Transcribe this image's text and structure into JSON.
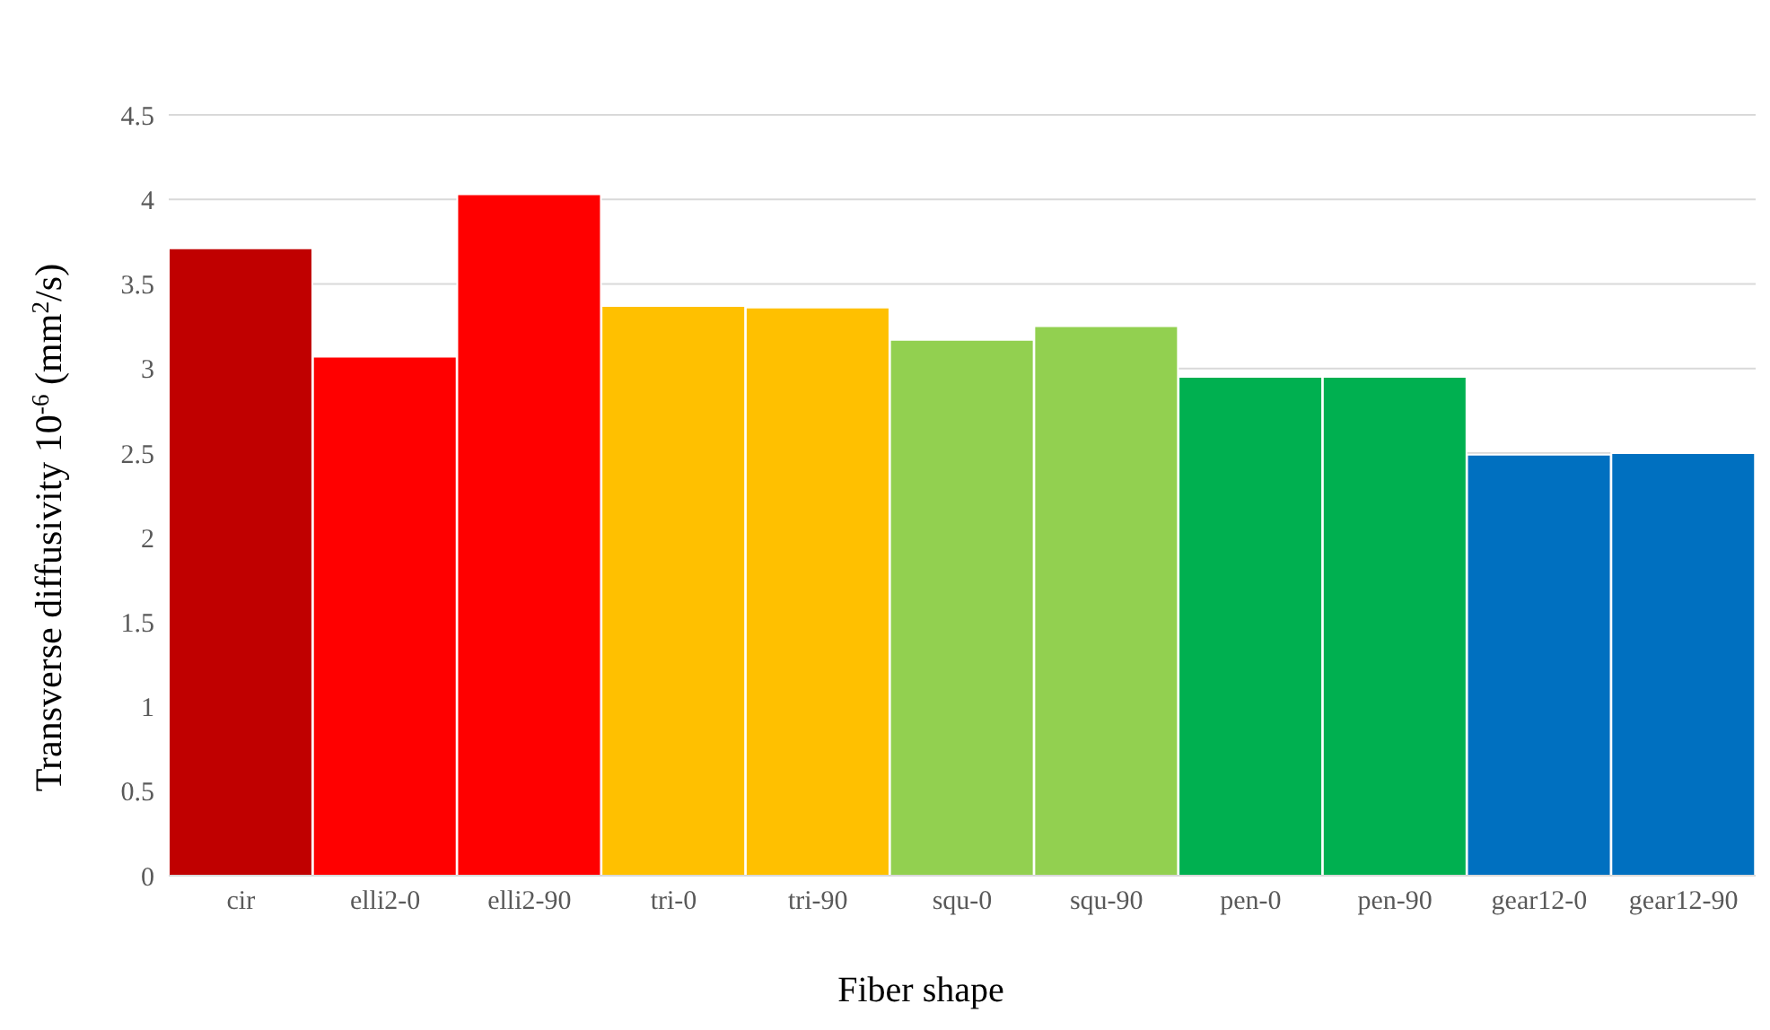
{
  "chart_data": {
    "type": "bar",
    "xlabel": "Fiber shape",
    "ylabel": "Transverse diffusivity 10$^{-6}$ (mm$^{2}$/s)",
    "categories": [
      "cir",
      "elli2-0",
      "elli2-90",
      "tri-0",
      "tri-90",
      "squ-0",
      "squ-90",
      "pen-0",
      "pen-90",
      "gear12-0",
      "gear12-90"
    ],
    "values": [
      3.71,
      3.07,
      4.03,
      3.37,
      3.36,
      3.17,
      3.25,
      2.95,
      2.95,
      2.49,
      2.5
    ],
    "colors": [
      "#c00000",
      "#ff0000",
      "#ff0000",
      "#ffc000",
      "#ffc000",
      "#92d050",
      "#92d050",
      "#00b050",
      "#00b050",
      "#0070c0",
      "#0070c0"
    ],
    "ylim": [
      0,
      4.5
    ],
    "yticks": [
      0,
      0.5,
      1,
      1.5,
      2,
      2.5,
      3,
      3.5,
      4,
      4.5
    ],
    "grid": "y",
    "legend": false
  }
}
